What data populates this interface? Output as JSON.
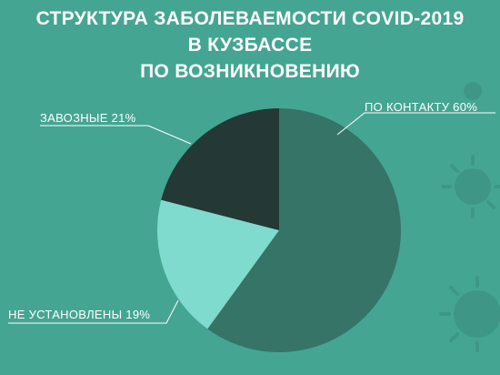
{
  "title": {
    "line1": "СТРУКТУРА ЗАБОЛЕВАЕМОСТИ COVID-2019",
    "line2": "В КУЗБАССЕ",
    "line3": "ПО ВОЗНИКНОВЕНИЮ"
  },
  "colors": {
    "background": "#45a593",
    "contact": "#357467",
    "import": "#243836",
    "unknown": "#7fdbcd",
    "text": "#ffffff"
  },
  "chart_data": {
    "type": "pie",
    "title": "СТРУКТУРА ЗАБОЛЕВАЕМОСТИ COVID-2019 В КУЗБАССЕ ПО ВОЗНИКНОВЕНИЮ",
    "slices": [
      {
        "label": "ПО КОНТАКТУ 60%",
        "value": 60,
        "color": "#357467"
      },
      {
        "label": "НЕ УСТАНОВЛЕНЫ 19%",
        "value": 19,
        "color": "#7fdbcd"
      },
      {
        "label": "ЗАВОЗНЫЕ 21%",
        "value": 21,
        "color": "#243836"
      }
    ],
    "start": "12 o'clock",
    "direction": "clockwise",
    "legend": "none",
    "label_placement": "outside with leader lines"
  }
}
